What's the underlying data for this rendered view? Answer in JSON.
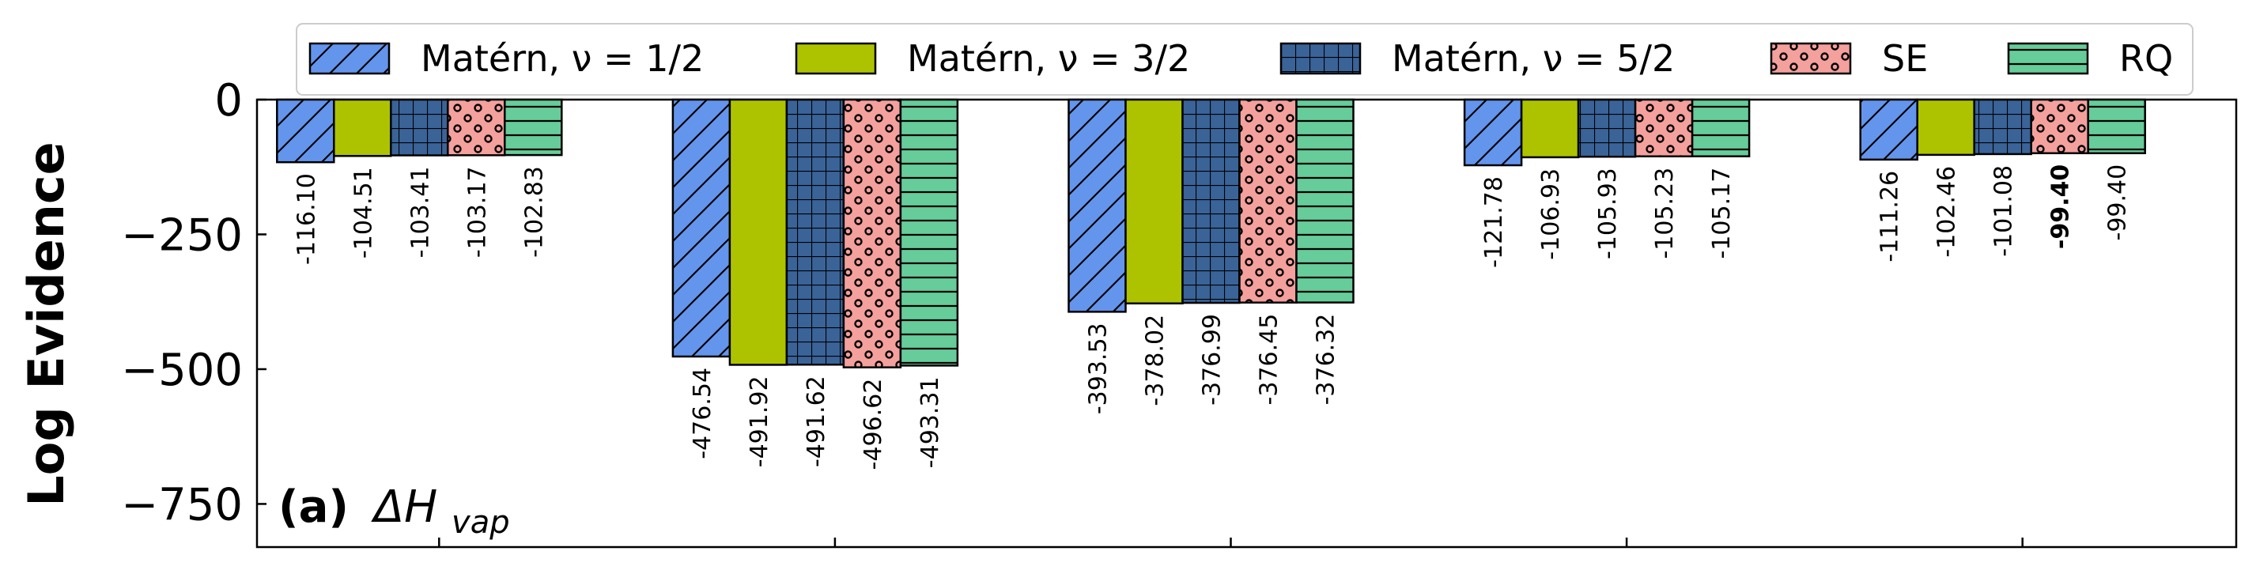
{
  "chart_data": {
    "type": "bar",
    "ylabel": "Log Evidence",
    "ylim": [
      -830,
      0
    ],
    "yticks": [
      0,
      -250,
      -500,
      -750
    ],
    "ytick_labels": [
      "0",
      "−250",
      "−500",
      "−750"
    ],
    "panel_label": {
      "prefix": "(a)",
      "symbol": "ΔH",
      "subscript": "vap"
    },
    "legend_placement": "top-center",
    "groups": 5,
    "series": [
      {
        "name": "Matérn, ν = 1/2",
        "color": "#6495ED",
        "pattern": "diagonal-hatch",
        "values": [
          -116.1,
          -476.54,
          -393.53,
          -121.78,
          -111.26
        ],
        "labels": [
          "-116.10",
          "-476.54",
          "-393.53",
          "-121.78",
          "-111.26"
        ]
      },
      {
        "name": "Matérn, ν = 3/2",
        "color": "#ADC300",
        "pattern": "none",
        "values": [
          -104.51,
          -491.92,
          -378.02,
          -106.93,
          -102.46
        ],
        "labels": [
          "-104.51",
          "-491.92",
          "-378.02",
          "-106.93",
          "-102.46"
        ]
      },
      {
        "name": "Matérn, ν = 5/2",
        "color": "#3A6398",
        "pattern": "grid-hatch",
        "values": [
          -103.41,
          -491.62,
          -376.99,
          -105.93,
          -101.08
        ],
        "labels": [
          "-103.41",
          "-491.62",
          "-376.99",
          "-105.93",
          "-101.08"
        ]
      },
      {
        "name": "SE",
        "color": "#F4A09C",
        "pattern": "dot-hatch",
        "values": [
          -103.17,
          -496.62,
          -376.45,
          -105.23,
          -99.4
        ],
        "labels": [
          "-103.17",
          "-496.62",
          "-376.45",
          "-105.23",
          "-99.40"
        ],
        "bold_index": 4
      },
      {
        "name": "RQ",
        "color": "#66CC99",
        "pattern": "horizontal-hatch",
        "values": [
          -102.83,
          -493.31,
          -376.32,
          -105.17,
          -99.4
        ],
        "labels": [
          "-102.83",
          "-493.31",
          "-376.32",
          "-105.17",
          "-99.40"
        ]
      }
    ],
    "grid": false
  }
}
